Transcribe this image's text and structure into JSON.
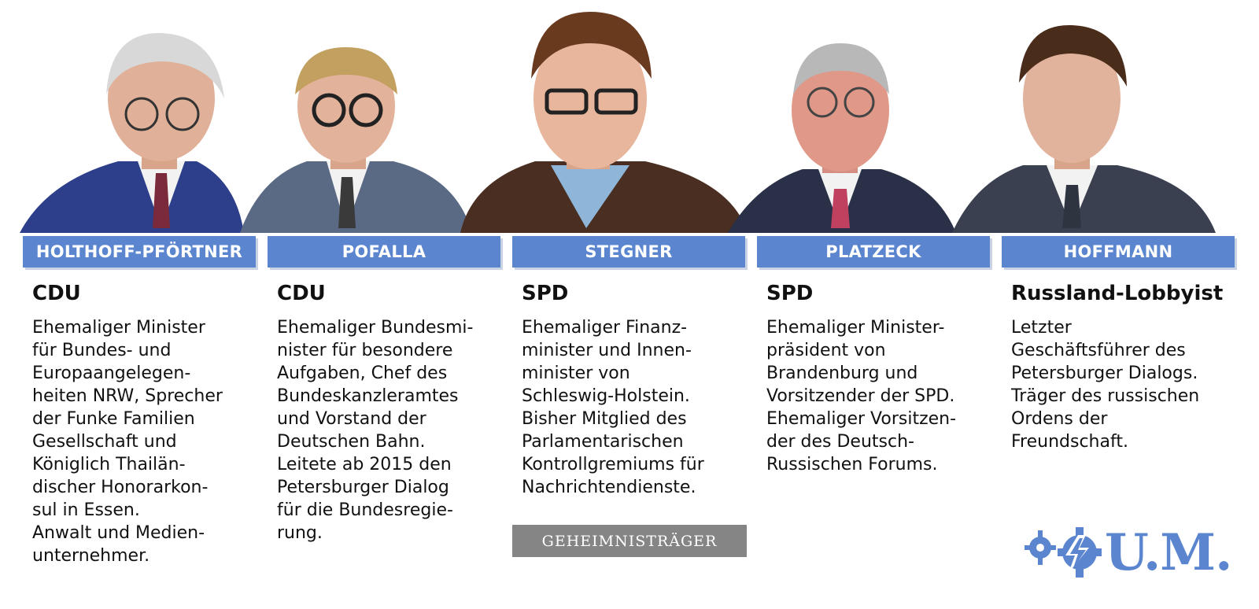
{
  "colors": {
    "accent": "#5b86cf",
    "badge": "#858585",
    "text": "#111111"
  },
  "people": [
    {
      "name": "HOLTHOFF-PFÖRTNER",
      "party": "CDU",
      "bio": "Ehemaliger Minister\nfür Bundes- und\nEuropaangelegen-\nheiten NRW, Sprecher\nder Funke Familien\nGesellschaft und\nKöniglich Thailän-\ndischer Honorarkon-\nsul in Essen.\nAnwalt und Medien-\nunternehmer."
    },
    {
      "name": "POFALLA",
      "party": "CDU",
      "bio": "Ehemaliger Bundesmi-\nnister für besondere\nAufgaben, Chef des\nBundeskanzleramtes\nund Vorstand der\nDeutschen Bahn.\nLeitete ab 2015 den\nPetersburger Dialog\nfür die Bundesregie-\nrung."
    },
    {
      "name": "STEGNER",
      "party": "SPD",
      "bio": "Ehemaliger Finanz-\nminister und Innen-\nminister von\nSchleswig-Holstein.\nBisher Mitglied des\nParlamentarischen\nKontrollgremiums für\nNachrichtendienste."
    },
    {
      "name": "PLATZECK",
      "party": "SPD",
      "bio": "Ehemaliger Minister-\npräsident von\nBrandenburg und\nVorsitzender der SPD.\nEhemaliger Vorsitzen-\nder des Deutsch-\nRussischen Forums."
    },
    {
      "name": "HOFFMANN",
      "party": "Russland-Lobbyist",
      "bio": "Letzter\nGeschäftsführer des\nPetersburger Dialogs.\nTräger des russischen\nOrdens der\nFreundschaft."
    }
  ],
  "badge": "GEHEIMNISTRÄGER",
  "logo": {
    "text": "U.M.",
    "icon": "lightning-gear-icon"
  }
}
